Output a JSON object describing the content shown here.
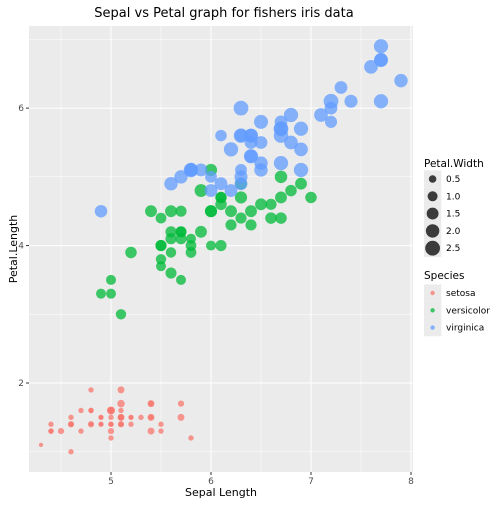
{
  "chart_data": {
    "type": "scatter",
    "title": "Sepal vs Petal graph for fishers iris data",
    "xlabel": "Sepal Length",
    "ylabel": "Petal.Length",
    "xlim": [
      4.18,
      8.02
    ],
    "ylim": [
      0.705,
      7.195
    ],
    "x_ticks": [
      5,
      6,
      7,
      8
    ],
    "y_ticks": [
      2,
      4,
      6
    ],
    "grid": true,
    "legend_position": "right",
    "size_legend": {
      "title": "Petal.Width",
      "entries": [
        "0.5",
        "1.0",
        "1.5",
        "2.0",
        "2.5"
      ],
      "values": [
        0.5,
        1.0,
        1.5,
        2.0,
        2.5
      ]
    },
    "color_legend": {
      "title": "Species",
      "entries": [
        "setosa",
        "versicolor",
        "virginica"
      ]
    },
    "colors": {
      "setosa": "#F8766D",
      "versicolor": "#00BA38",
      "virginica": "#619CFF",
      "panel": "#EBEBEB",
      "grid": "#FFFFFF"
    },
    "series": [
      {
        "name": "setosa",
        "points": [
          [
            5.1,
            1.4,
            0.2
          ],
          [
            4.9,
            1.4,
            0.2
          ],
          [
            4.7,
            1.3,
            0.2
          ],
          [
            4.6,
            1.5,
            0.2
          ],
          [
            5.0,
            1.4,
            0.2
          ],
          [
            5.4,
            1.7,
            0.4
          ],
          [
            4.6,
            1.4,
            0.3
          ],
          [
            5.0,
            1.5,
            0.2
          ],
          [
            4.4,
            1.4,
            0.2
          ],
          [
            4.9,
            1.5,
            0.1
          ],
          [
            5.4,
            1.5,
            0.2
          ],
          [
            4.8,
            1.6,
            0.2
          ],
          [
            4.8,
            1.4,
            0.1
          ],
          [
            4.3,
            1.1,
            0.1
          ],
          [
            5.8,
            1.2,
            0.2
          ],
          [
            5.7,
            1.5,
            0.4
          ],
          [
            5.4,
            1.3,
            0.4
          ],
          [
            5.1,
            1.4,
            0.3
          ],
          [
            5.7,
            1.7,
            0.3
          ],
          [
            5.1,
            1.5,
            0.3
          ],
          [
            5.4,
            1.7,
            0.2
          ],
          [
            5.1,
            1.5,
            0.4
          ],
          [
            4.6,
            1.0,
            0.2
          ],
          [
            5.1,
            1.7,
            0.5
          ],
          [
            4.8,
            1.9,
            0.2
          ],
          [
            5.0,
            1.6,
            0.2
          ],
          [
            5.0,
            1.6,
            0.4
          ],
          [
            5.2,
            1.5,
            0.2
          ],
          [
            5.2,
            1.4,
            0.2
          ],
          [
            4.7,
            1.6,
            0.2
          ],
          [
            4.8,
            1.6,
            0.2
          ],
          [
            5.4,
            1.5,
            0.4
          ],
          [
            5.2,
            1.5,
            0.1
          ],
          [
            5.5,
            1.4,
            0.2
          ],
          [
            4.9,
            1.5,
            0.2
          ],
          [
            5.0,
            1.2,
            0.2
          ],
          [
            5.5,
            1.3,
            0.2
          ],
          [
            4.9,
            1.4,
            0.1
          ],
          [
            4.4,
            1.3,
            0.2
          ],
          [
            5.1,
            1.5,
            0.2
          ],
          [
            5.0,
            1.3,
            0.3
          ],
          [
            4.5,
            1.3,
            0.3
          ],
          [
            4.4,
            1.3,
            0.2
          ],
          [
            5.0,
            1.6,
            0.6
          ],
          [
            5.1,
            1.9,
            0.4
          ],
          [
            4.8,
            1.4,
            0.3
          ],
          [
            5.1,
            1.6,
            0.2
          ],
          [
            4.6,
            1.4,
            0.2
          ],
          [
            5.3,
            1.5,
            0.2
          ],
          [
            5.0,
            1.4,
            0.2
          ]
        ]
      },
      {
        "name": "versicolor",
        "points": [
          [
            7.0,
            4.7,
            1.4
          ],
          [
            6.4,
            4.5,
            1.5
          ],
          [
            6.9,
            4.9,
            1.5
          ],
          [
            5.5,
            4.0,
            1.3
          ],
          [
            6.5,
            4.6,
            1.5
          ],
          [
            5.7,
            4.5,
            1.3
          ],
          [
            6.3,
            4.7,
            1.6
          ],
          [
            4.9,
            3.3,
            1.0
          ],
          [
            6.6,
            4.6,
            1.3
          ],
          [
            5.2,
            3.9,
            1.4
          ],
          [
            5.0,
            3.5,
            1.0
          ],
          [
            5.9,
            4.2,
            1.5
          ],
          [
            6.0,
            4.0,
            1.0
          ],
          [
            6.1,
            4.7,
            1.4
          ],
          [
            5.6,
            3.6,
            1.3
          ],
          [
            6.7,
            4.4,
            1.4
          ],
          [
            5.6,
            4.5,
            1.5
          ],
          [
            5.8,
            4.1,
            1.0
          ],
          [
            6.2,
            4.5,
            1.5
          ],
          [
            5.6,
            3.9,
            1.1
          ],
          [
            5.9,
            4.8,
            1.8
          ],
          [
            6.1,
            4.0,
            1.3
          ],
          [
            6.3,
            4.9,
            1.5
          ],
          [
            6.1,
            4.7,
            1.2
          ],
          [
            6.4,
            4.3,
            1.3
          ],
          [
            6.6,
            4.4,
            1.4
          ],
          [
            6.8,
            4.8,
            1.4
          ],
          [
            6.7,
            5.0,
            1.7
          ],
          [
            6.0,
            4.5,
            1.5
          ],
          [
            5.7,
            3.5,
            1.0
          ],
          [
            5.5,
            3.8,
            1.1
          ],
          [
            5.5,
            3.7,
            1.0
          ],
          [
            5.8,
            3.9,
            1.2
          ],
          [
            6.0,
            5.1,
            1.6
          ],
          [
            5.4,
            4.5,
            1.5
          ],
          [
            6.0,
            4.5,
            1.6
          ],
          [
            6.7,
            4.7,
            1.5
          ],
          [
            6.3,
            4.4,
            1.3
          ],
          [
            5.6,
            4.1,
            1.3
          ],
          [
            5.5,
            4.0,
            1.3
          ],
          [
            5.5,
            4.4,
            1.2
          ],
          [
            6.1,
            4.6,
            1.4
          ],
          [
            5.8,
            4.0,
            1.2
          ],
          [
            5.0,
            3.3,
            1.0
          ],
          [
            5.6,
            4.2,
            1.3
          ],
          [
            5.7,
            4.2,
            1.2
          ],
          [
            5.7,
            4.2,
            1.3
          ],
          [
            6.2,
            4.3,
            1.3
          ],
          [
            5.1,
            3.0,
            1.1
          ],
          [
            5.7,
            4.1,
            1.3
          ]
        ]
      },
      {
        "name": "virginica",
        "points": [
          [
            6.3,
            6.0,
            2.5
          ],
          [
            5.8,
            5.1,
            1.9
          ],
          [
            7.1,
            5.9,
            2.1
          ],
          [
            6.3,
            5.6,
            1.8
          ],
          [
            6.5,
            5.8,
            2.2
          ],
          [
            7.6,
            6.6,
            2.1
          ],
          [
            4.9,
            4.5,
            1.7
          ],
          [
            7.3,
            6.3,
            1.8
          ],
          [
            6.7,
            5.8,
            1.8
          ],
          [
            7.2,
            6.1,
            2.5
          ],
          [
            6.5,
            5.1,
            2.0
          ],
          [
            6.4,
            5.3,
            1.9
          ],
          [
            6.8,
            5.5,
            2.1
          ],
          [
            5.7,
            5.0,
            2.0
          ],
          [
            5.8,
            5.1,
            2.4
          ],
          [
            6.4,
            5.3,
            2.3
          ],
          [
            6.5,
            5.5,
            1.8
          ],
          [
            7.7,
            6.7,
            2.2
          ],
          [
            7.7,
            6.9,
            2.3
          ],
          [
            6.0,
            5.0,
            1.5
          ],
          [
            6.9,
            5.7,
            2.3
          ],
          [
            5.6,
            4.9,
            2.0
          ],
          [
            7.7,
            6.7,
            2.0
          ],
          [
            6.3,
            4.9,
            1.8
          ],
          [
            6.7,
            5.7,
            2.1
          ],
          [
            7.2,
            6.0,
            1.8
          ],
          [
            6.2,
            4.8,
            1.8
          ],
          [
            6.1,
            4.9,
            1.8
          ],
          [
            6.4,
            5.6,
            2.1
          ],
          [
            7.2,
            5.8,
            1.6
          ],
          [
            7.4,
            6.1,
            1.9
          ],
          [
            7.9,
            6.4,
            2.0
          ],
          [
            6.4,
            5.6,
            2.2
          ],
          [
            6.3,
            5.1,
            1.5
          ],
          [
            6.1,
            5.6,
            1.4
          ],
          [
            7.7,
            6.1,
            2.3
          ],
          [
            6.3,
            5.6,
            2.4
          ],
          [
            6.4,
            5.5,
            1.8
          ],
          [
            6.0,
            4.8,
            1.8
          ],
          [
            6.9,
            5.4,
            2.1
          ],
          [
            6.7,
            5.6,
            2.4
          ],
          [
            6.9,
            5.1,
            2.3
          ],
          [
            5.8,
            5.1,
            1.9
          ],
          [
            6.8,
            5.9,
            2.3
          ],
          [
            6.7,
            5.7,
            2.5
          ],
          [
            6.7,
            5.2,
            2.3
          ],
          [
            6.3,
            5.0,
            1.9
          ],
          [
            6.5,
            5.2,
            2.0
          ],
          [
            6.2,
            5.4,
            2.3
          ],
          [
            5.9,
            5.1,
            1.8
          ]
        ]
      }
    ]
  }
}
